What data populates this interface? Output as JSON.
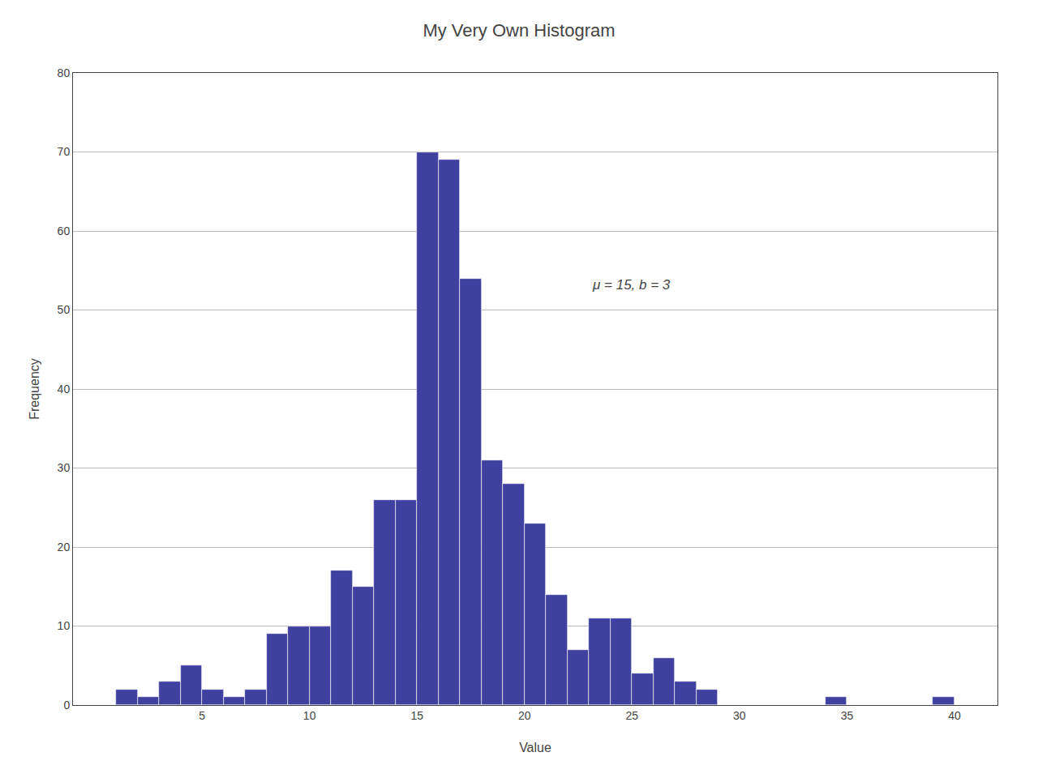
{
  "chart_data": {
    "type": "bar",
    "title": "My Very Own Histogram",
    "x_label": "Value",
    "y_label": "Frequency",
    "x": [
      1,
      2,
      3,
      4,
      5,
      6,
      7,
      8,
      9,
      10,
      11,
      12,
      13,
      14,
      15,
      16,
      17,
      18,
      19,
      20,
      21,
      22,
      23,
      24,
      25,
      26,
      27,
      28,
      34,
      39
    ],
    "values": [
      2,
      1,
      3,
      5,
      2,
      1,
      2,
      9,
      10,
      10,
      17,
      15,
      26,
      26,
      70,
      69,
      54,
      31,
      28,
      23,
      14,
      7,
      11,
      11,
      4,
      6,
      3,
      2,
      1,
      1
    ],
    "color": "#4040a0",
    "annotations": [
      "μ = 15, b = 3"
    ],
    "xlim": [
      -1,
      42
    ],
    "ylim": [
      0,
      80
    ],
    "xticks": [
      5,
      10,
      15,
      20,
      25,
      30,
      35,
      40
    ],
    "yticks": [
      0,
      10,
      20,
      30,
      40,
      50,
      60,
      70,
      80
    ],
    "grid": "y"
  }
}
